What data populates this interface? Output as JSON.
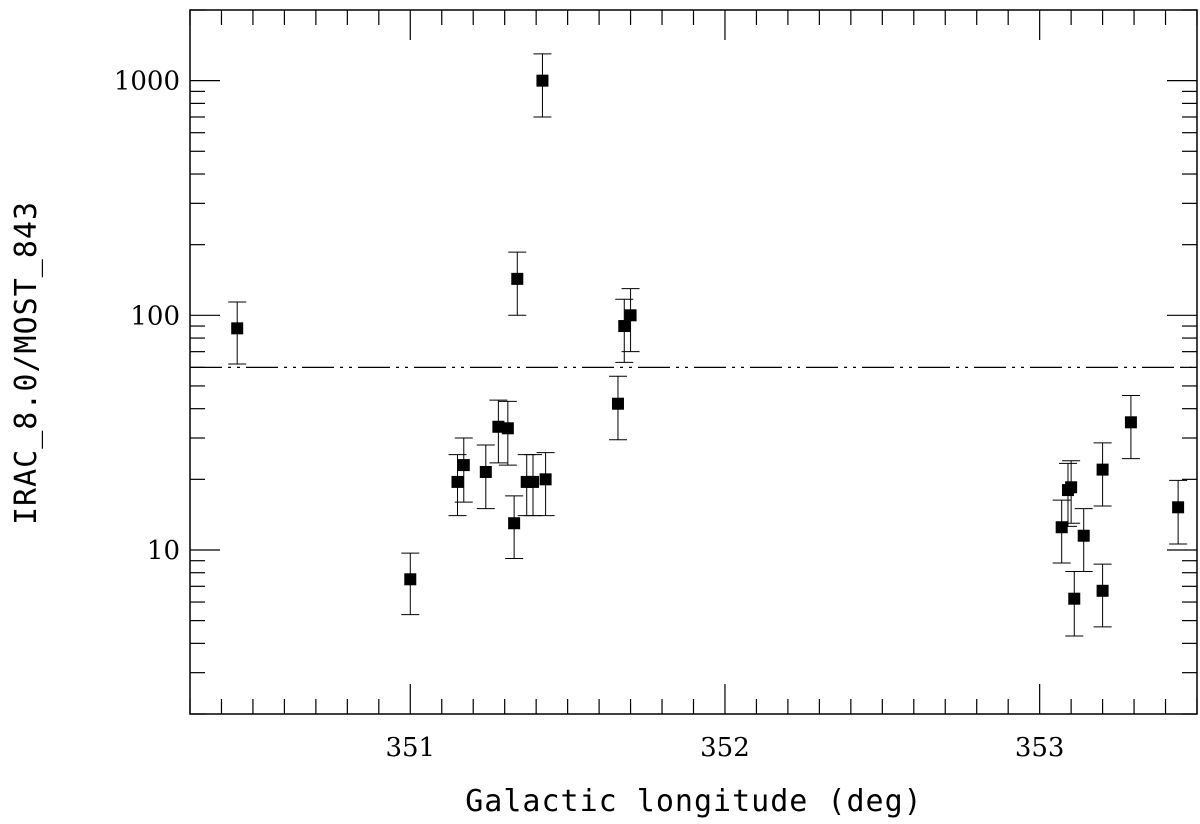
{
  "chart_data": {
    "type": "scatter",
    "title": "",
    "xlabel": "Galactic longitude (deg)",
    "ylabel": "IRAC_8.0/MOST_843",
    "xlim": [
      350.3,
      353.5
    ],
    "ylim": [
      2,
      2000
    ],
    "yscale": "log",
    "x_ticks": [
      351,
      352,
      353
    ],
    "x_tick_labels": [
      "351",
      "352",
      "353"
    ],
    "y_ticks": [
      10,
      100,
      1000
    ],
    "y_tick_labels": [
      "10",
      "100",
      "1000"
    ],
    "grid": false,
    "threshold_line": {
      "y": 60,
      "style": "dash-dot"
    },
    "series": [
      {
        "marker": "square",
        "color": "#000000",
        "points": [
          {
            "x": 350.45,
            "y": 88,
            "lo": 62,
            "hi": 114
          },
          {
            "x": 351.0,
            "y": 7.5,
            "lo": 5.3,
            "hi": 9.7
          },
          {
            "x": 351.15,
            "y": 19.5,
            "lo": 14,
            "hi": 25.5
          },
          {
            "x": 351.17,
            "y": 23,
            "lo": 16,
            "hi": 30
          },
          {
            "x": 351.24,
            "y": 21.5,
            "lo": 15,
            "hi": 28
          },
          {
            "x": 351.28,
            "y": 33.5,
            "lo": 23.5,
            "hi": 43.5
          },
          {
            "x": 351.31,
            "y": 33,
            "lo": 23,
            "hi": 43
          },
          {
            "x": 351.33,
            "y": 13,
            "lo": 9.2,
            "hi": 17
          },
          {
            "x": 351.34,
            "y": 143,
            "lo": 100,
            "hi": 186
          },
          {
            "x": 351.37,
            "y": 19.5,
            "lo": 14,
            "hi": 25.5
          },
          {
            "x": 351.39,
            "y": 19.5,
            "lo": 14,
            "hi": 25.5
          },
          {
            "x": 351.42,
            "y": 1000,
            "lo": 700,
            "hi": 1300
          },
          {
            "x": 351.43,
            "y": 20,
            "lo": 14,
            "hi": 26
          },
          {
            "x": 351.66,
            "y": 42,
            "lo": 29.5,
            "hi": 55
          },
          {
            "x": 351.68,
            "y": 90,
            "lo": 63,
            "hi": 117
          },
          {
            "x": 351.7,
            "y": 100,
            "lo": 70,
            "hi": 130
          },
          {
            "x": 353.07,
            "y": 12.5,
            "lo": 8.8,
            "hi": 16.3
          },
          {
            "x": 353.09,
            "y": 18,
            "lo": 12.6,
            "hi": 23.4
          },
          {
            "x": 353.1,
            "y": 18.5,
            "lo": 13,
            "hi": 24
          },
          {
            "x": 353.11,
            "y": 6.2,
            "lo": 4.3,
            "hi": 8.1
          },
          {
            "x": 353.14,
            "y": 11.5,
            "lo": 8.1,
            "hi": 15
          },
          {
            "x": 353.2,
            "y": 22,
            "lo": 15.4,
            "hi": 28.6
          },
          {
            "x": 353.2,
            "y": 6.7,
            "lo": 4.7,
            "hi": 8.7
          },
          {
            "x": 353.29,
            "y": 35,
            "lo": 24.5,
            "hi": 45.5
          },
          {
            "x": 353.44,
            "y": 15.2,
            "lo": 10.6,
            "hi": 19.8
          }
        ]
      }
    ]
  }
}
